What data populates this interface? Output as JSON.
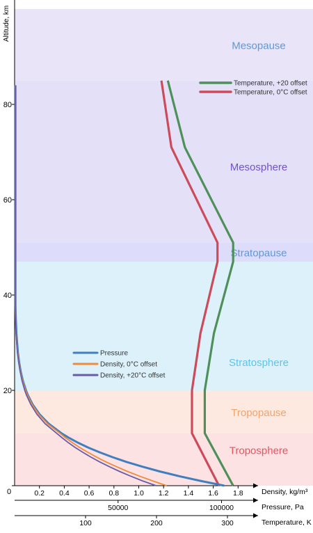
{
  "chart_data": {
    "type": "line",
    "title": "",
    "y_axis": {
      "label": "Altitude, km",
      "ticks": [
        0,
        20,
        40,
        60,
        80
      ],
      "range": [
        0,
        94
      ]
    },
    "x_axes": [
      {
        "key": "density",
        "label": "Density, kg/m³",
        "range": [
          0,
          2.0
        ],
        "tick_labels": [
          "0.2",
          "0.4",
          "0.6",
          "0.8",
          "1.0",
          "1.2",
          "1.4",
          "1.6",
          "1.8"
        ],
        "tick_values": [
          0.2,
          0.4,
          0.6,
          0.8,
          1.0,
          1.2,
          1.4,
          1.6,
          1.8
        ]
      },
      {
        "key": "pressure",
        "label": "Pressure, Pa",
        "range": [
          0,
          120000
        ],
        "tick_labels": [
          "50000",
          "100000"
        ],
        "tick_values": [
          50000,
          100000
        ]
      },
      {
        "key": "temperature",
        "label": "Temperature, K",
        "range": [
          0,
          350
        ],
        "tick_labels": [
          "100",
          "200",
          "300"
        ],
        "tick_values": [
          100,
          200,
          300
        ]
      }
    ],
    "origin_label": "0",
    "layers": [
      {
        "name": "Troposphere",
        "from_km": 0,
        "to_km": 11,
        "color": "#fde2e4",
        "label_color": "#e8535f",
        "label_km": 7.5
      },
      {
        "name": "Tropopause",
        "from_km": 11,
        "to_km": 20,
        "color": "#fde9df",
        "label_color": "#f0a46c",
        "label_km": 15.5
      },
      {
        "name": "Stratosphere",
        "from_km": 20,
        "to_km": 47,
        "color": "#dcf1fa",
        "label_color": "#5ec4e8",
        "label_km": 26
      },
      {
        "name": "Stratopause",
        "from_km": 47,
        "to_km": 51,
        "color": "#ddddfb",
        "label_color": "#5b9ad8",
        "label_km": 49
      },
      {
        "name": "Mesosphere",
        "from_km": 51,
        "to_km": 85,
        "color": "#e3e0f8",
        "label_color": "#7452c9",
        "label_km": 67
      },
      {
        "name": "Mesopause",
        "from_km": 85,
        "to_km": 100,
        "color": "#eae4f8",
        "label_color": "#5b9ad8",
        "label_km": 92.5
      }
    ],
    "series": [
      {
        "name": "Temperature, +20 offset",
        "axis": "temperature",
        "color": "#4e8f5a",
        "points": [
          [
            308,
            0
          ],
          [
            268,
            11
          ],
          [
            268,
            20
          ],
          [
            281,
            32
          ],
          [
            308,
            47
          ],
          [
            308,
            51
          ],
          [
            240,
            71
          ],
          [
            216,
            85
          ]
        ]
      },
      {
        "name": "Temperature, 0°C offset",
        "axis": "temperature",
        "color": "#cc4a5a",
        "points": [
          [
            288,
            0
          ],
          [
            250,
            11
          ],
          [
            250,
            20
          ],
          [
            262,
            32
          ],
          [
            286,
            47
          ],
          [
            286,
            51
          ],
          [
            221,
            71
          ],
          [
            207,
            85
          ]
        ]
      },
      {
        "name": "Pressure",
        "axis": "pressure",
        "color": "#3f7fbf",
        "points": [
          [
            101325,
            0
          ],
          [
            89875,
            1
          ],
          [
            79495,
            2
          ],
          [
            70108,
            3
          ],
          [
            61640,
            4
          ],
          [
            54020,
            5
          ],
          [
            47181,
            6
          ],
          [
            41061,
            7
          ],
          [
            35600,
            8
          ],
          [
            30742,
            9
          ],
          [
            26436,
            10
          ],
          [
            22632,
            11
          ],
          [
            16510,
            13
          ],
          [
            12044,
            15
          ],
          [
            8787,
            17
          ],
          [
            6410,
            19
          ],
          [
            5475,
            20
          ],
          [
            4000,
            22
          ],
          [
            2930,
            24
          ],
          [
            2150,
            26
          ],
          [
            1590,
            28
          ],
          [
            1197,
            30
          ],
          [
            889,
            32
          ],
          [
            663,
            34
          ],
          [
            498,
            36
          ],
          [
            377,
            38
          ],
          [
            287,
            40
          ],
          [
            220,
            42
          ],
          [
            169,
            44
          ],
          [
            131,
            46
          ],
          [
            111,
            47
          ],
          [
            76,
            50
          ],
          [
            52,
            54
          ],
          [
            26,
            60
          ],
          [
            12,
            66
          ],
          [
            5,
            72
          ],
          [
            2,
            78
          ],
          [
            0.7,
            84
          ]
        ]
      },
      {
        "name": "Density, 0°C offset",
        "axis": "density",
        "color": "#ef8a3c",
        "points": [
          [
            1.225,
            0
          ],
          [
            1.112,
            1
          ],
          [
            1.007,
            2
          ],
          [
            0.909,
            3
          ],
          [
            0.819,
            4
          ],
          [
            0.736,
            5
          ],
          [
            0.66,
            6
          ],
          [
            0.59,
            7
          ],
          [
            0.525,
            8
          ],
          [
            0.467,
            9
          ],
          [
            0.413,
            10
          ],
          [
            0.364,
            11
          ],
          [
            0.265,
            13
          ],
          [
            0.194,
            15
          ],
          [
            0.141,
            17
          ],
          [
            0.103,
            19
          ],
          [
            0.088,
            20
          ],
          [
            0.064,
            22
          ],
          [
            0.047,
            24
          ],
          [
            0.034,
            26
          ],
          [
            0.025,
            28
          ],
          [
            0.018,
            30
          ],
          [
            0.013,
            32
          ],
          [
            0.0099,
            34
          ],
          [
            0.0072,
            36
          ],
          [
            0.0053,
            38
          ],
          [
            0.004,
            40
          ],
          [
            0.003,
            42
          ],
          [
            0.0022,
            44
          ],
          [
            0.0017,
            46
          ],
          [
            0.0014,
            47
          ],
          [
            0.001,
            50
          ],
          [
            0.0007,
            54
          ],
          [
            0.0003,
            60
          ],
          [
            0.0001,
            66
          ],
          [
            0.0001,
            72
          ],
          [
            0.0001,
            84
          ]
        ]
      },
      {
        "name": "Density, +20°C offset",
        "axis": "density",
        "color": "#6a5aa8",
        "points": [
          [
            1.14,
            0
          ],
          [
            1.03,
            1
          ],
          [
            0.935,
            2
          ],
          [
            0.845,
            3
          ],
          [
            0.762,
            4
          ],
          [
            0.685,
            5
          ],
          [
            0.614,
            6
          ],
          [
            0.549,
            7
          ],
          [
            0.489,
            8
          ],
          [
            0.435,
            9
          ],
          [
            0.385,
            10
          ],
          [
            0.338,
            11
          ],
          [
            0.246,
            13
          ],
          [
            0.18,
            15
          ],
          [
            0.131,
            17
          ],
          [
            0.096,
            19
          ],
          [
            0.082,
            20
          ],
          [
            0.06,
            22
          ],
          [
            0.044,
            24
          ],
          [
            0.032,
            26
          ],
          [
            0.023,
            28
          ],
          [
            0.017,
            30
          ],
          [
            0.012,
            32
          ],
          [
            0.0092,
            34
          ],
          [
            0.0067,
            36
          ],
          [
            0.005,
            38
          ],
          [
            0.0037,
            40
          ],
          [
            0.0028,
            42
          ],
          [
            0.0021,
            44
          ],
          [
            0.0016,
            46
          ],
          [
            0.0013,
            47
          ],
          [
            0.0009,
            50
          ],
          [
            0.0006,
            54
          ],
          [
            0.0003,
            60
          ],
          [
            0.0001,
            66
          ],
          [
            0.0001,
            72
          ],
          [
            0.0001,
            84
          ]
        ]
      }
    ],
    "legends": [
      {
        "position": "top-right",
        "entries": [
          "Temperature, +20 offset",
          "Temperature, 0°C offset"
        ]
      },
      {
        "position": "lower-middle",
        "entries": [
          "Pressure",
          "Density, 0°C offset",
          "Density, +20°C offset"
        ]
      }
    ],
    "grid": false
  }
}
